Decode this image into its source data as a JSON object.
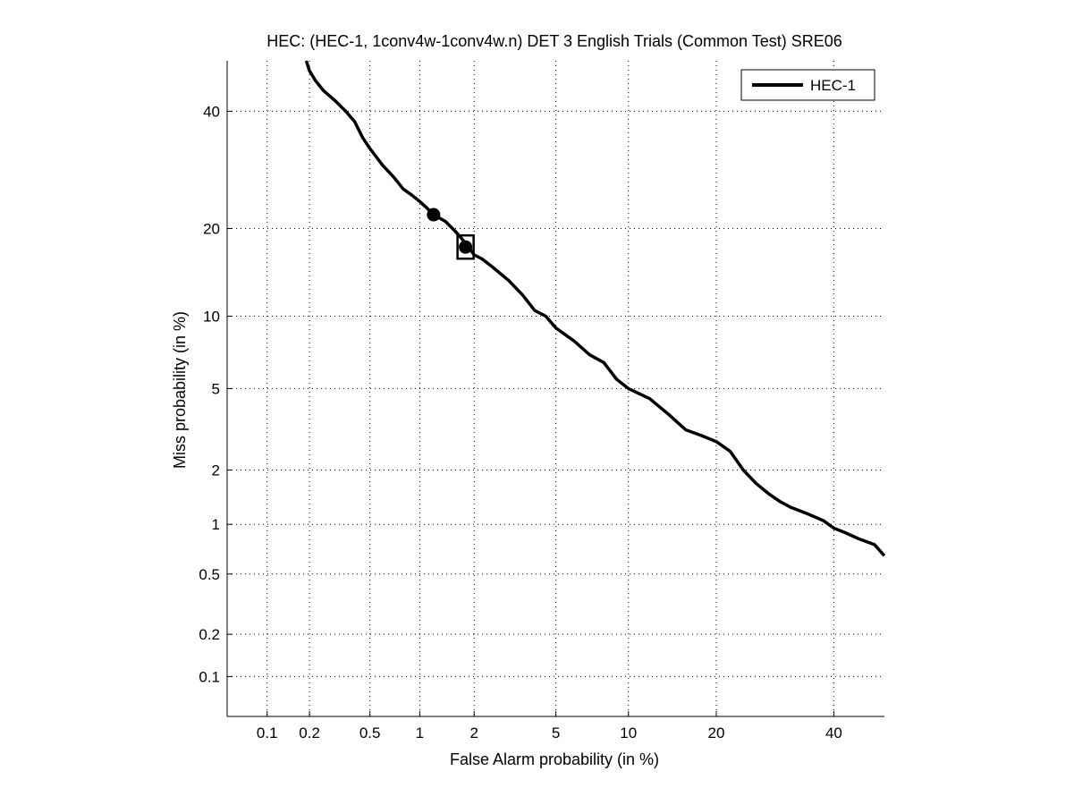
{
  "chart_data": {
    "type": "line",
    "title": "HEC: (HEC-1, 1conv4w-1conv4w.n) DET 3 English Trials (Common Test) SRE06",
    "xlabel": "False Alarm probability (in %)",
    "ylabel": "Miss probability (in %)",
    "x_scale": "normal-deviate (probit)",
    "y_scale": "normal-deviate (probit)",
    "xlim": [
      0.05,
      50
    ],
    "ylim": [
      0.05,
      50
    ],
    "x_ticks": [
      0.1,
      0.2,
      0.5,
      1,
      2,
      5,
      10,
      20,
      40
    ],
    "x_tick_labels": [
      "0.1",
      "0.2",
      "0.5",
      "1",
      "2",
      "5",
      "10",
      "20",
      "40"
    ],
    "y_ticks": [
      0.1,
      0.2,
      0.5,
      1,
      2,
      5,
      10,
      20,
      40
    ],
    "y_tick_labels": [
      "0.1",
      "0.2",
      "0.5",
      "1",
      "2",
      "5",
      "10",
      "20",
      "40"
    ],
    "grid": "dotted",
    "legend": {
      "position": "top-right",
      "entries": [
        "HEC-1"
      ]
    },
    "series": [
      {
        "name": "HEC-1",
        "color": "#000000",
        "style": "solid",
        "points": [
          [
            0.19,
            50
          ],
          [
            0.2,
            48
          ],
          [
            0.22,
            46
          ],
          [
            0.25,
            44
          ],
          [
            0.3,
            42
          ],
          [
            0.35,
            40
          ],
          [
            0.4,
            38
          ],
          [
            0.45,
            35
          ],
          [
            0.5,
            33
          ],
          [
            0.6,
            30
          ],
          [
            0.7,
            28
          ],
          [
            0.8,
            26
          ],
          [
            0.9,
            25
          ],
          [
            1.0,
            24
          ],
          [
            1.1,
            23
          ],
          [
            1.2,
            22
          ],
          [
            1.4,
            21
          ],
          [
            1.6,
            19.5
          ],
          [
            1.8,
            18
          ],
          [
            2.0,
            16.5
          ],
          [
            2.2,
            16
          ],
          [
            2.5,
            15
          ],
          [
            3.0,
            13.5
          ],
          [
            3.5,
            12
          ],
          [
            4.0,
            10.5
          ],
          [
            4.5,
            10
          ],
          [
            5.0,
            9
          ],
          [
            6.0,
            8
          ],
          [
            7.0,
            7
          ],
          [
            8.0,
            6.5
          ],
          [
            9.0,
            5.5
          ],
          [
            10.0,
            5
          ],
          [
            12.0,
            4.5
          ],
          [
            14.0,
            3.8
          ],
          [
            16.0,
            3.2
          ],
          [
            18.0,
            3.0
          ],
          [
            20.0,
            2.8
          ],
          [
            22.0,
            2.5
          ],
          [
            24.0,
            2.0
          ],
          [
            26.0,
            1.7
          ],
          [
            28.0,
            1.5
          ],
          [
            30.0,
            1.35
          ],
          [
            32.0,
            1.25
          ],
          [
            35.0,
            1.15
          ],
          [
            38.0,
            1.05
          ],
          [
            40.0,
            0.95
          ],
          [
            42.0,
            0.9
          ],
          [
            45.0,
            0.82
          ],
          [
            48.0,
            0.76
          ],
          [
            50.0,
            0.65
          ]
        ]
      }
    ],
    "markers": [
      {
        "type": "circle",
        "x": 1.2,
        "y": 22,
        "filled": true
      },
      {
        "type": "circle",
        "x": 1.8,
        "y": 17.5,
        "filled": true
      },
      {
        "type": "square",
        "x": 1.8,
        "y": 17.5,
        "filled": false
      }
    ]
  }
}
